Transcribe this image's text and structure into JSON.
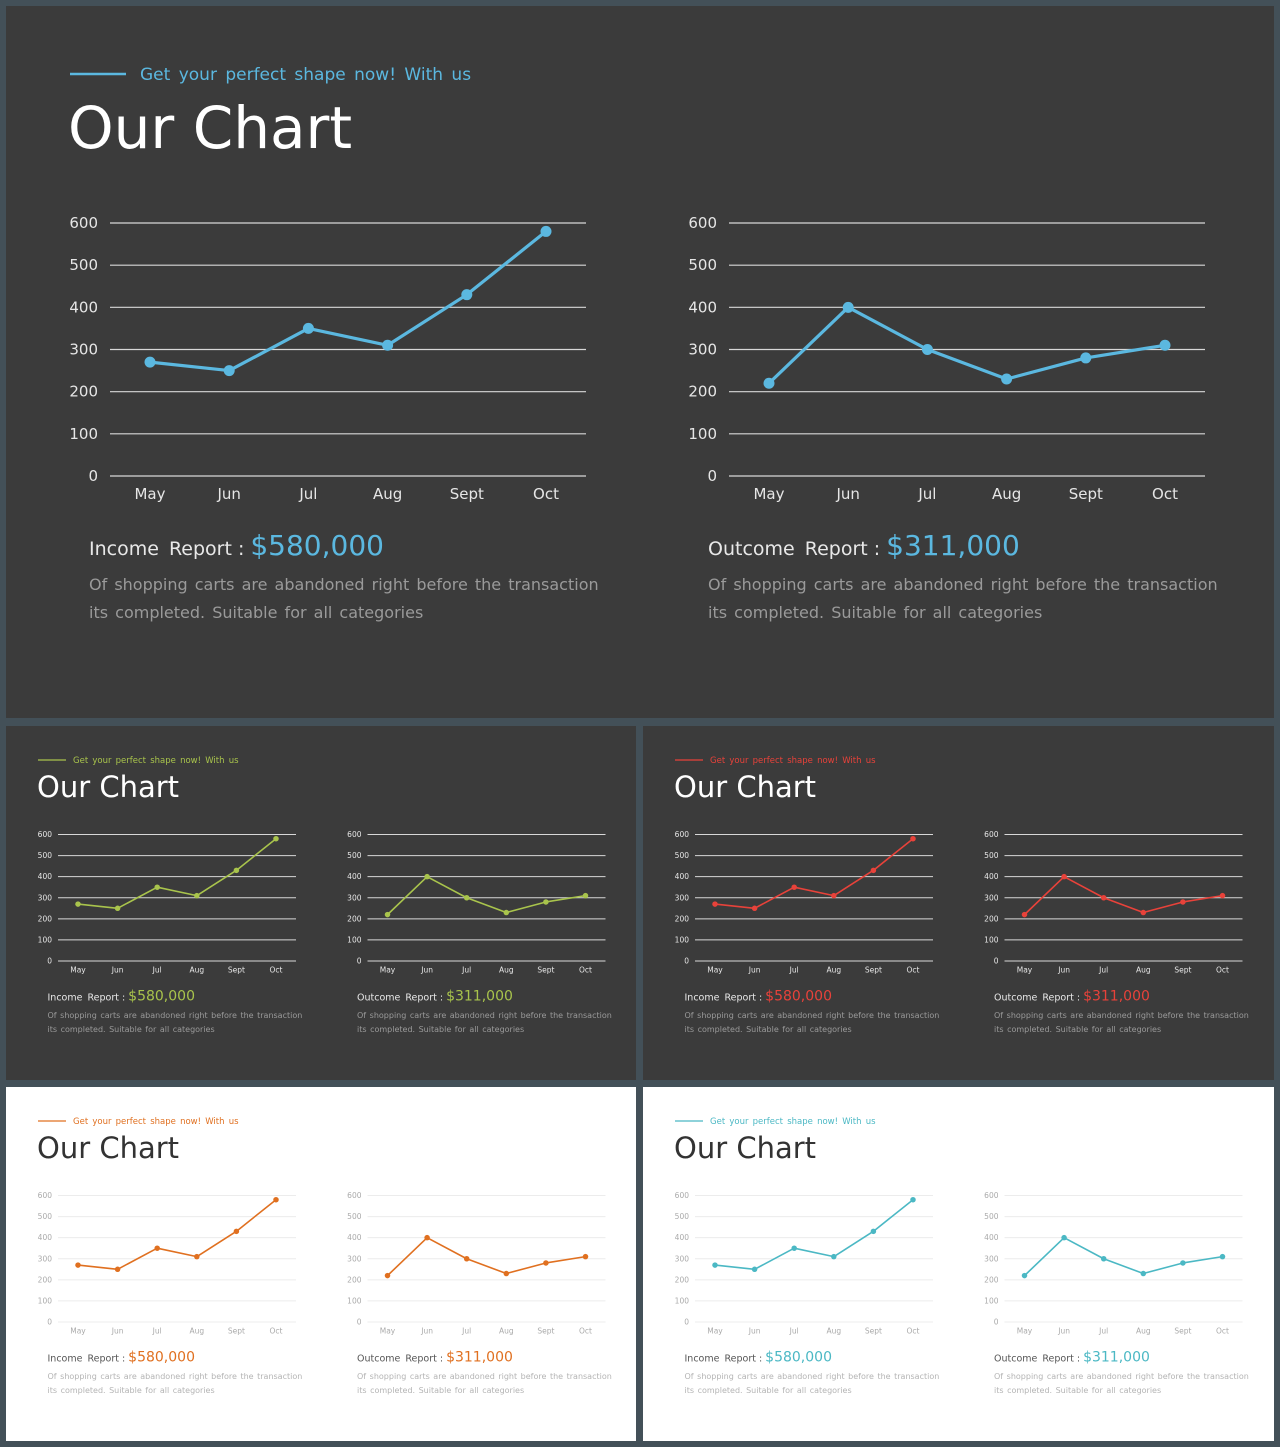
{
  "slides": [
    {
      "theme": "dark",
      "accent": "#5bb8e0",
      "tagline": "Get your perfect shape now! With us",
      "title": "Our Chart",
      "charts": [
        {
          "label": "Income Report",
          "amount": "$580,000",
          "description_line1": "Of shopping carts are abandoned right before the transaction",
          "description_line2": "its completed. Suitable for all categories"
        },
        {
          "label": "Outcome Report",
          "amount": "$311,000",
          "description_line1": "Of shopping carts are abandoned right before the transaction",
          "description_line2": "its completed. Suitable for all categories"
        }
      ]
    },
    {
      "theme": "dark",
      "accent": "#a9c44c",
      "tagline": "Get your perfect shape now! With us",
      "title": "Our Chart",
      "charts": [
        {
          "label": "Income Report",
          "amount": "$580,000",
          "description_line1": "Of shopping carts are abandoned right before the transaction",
          "description_line2": "its completed. Suitable for all categories"
        },
        {
          "label": "Outcome Report",
          "amount": "$311,000",
          "description_line1": "Of shopping carts are abandoned right before the transaction",
          "description_line2": "its completed. Suitable for all categories"
        }
      ]
    },
    {
      "theme": "dark",
      "accent": "#e8423a",
      "tagline": "Get your perfect shape now! With us",
      "title": "Our Chart",
      "charts": [
        {
          "label": "Income Report",
          "amount": "$580,000",
          "description_line1": "Of shopping carts are abandoned right before the transaction",
          "description_line2": "its completed. Suitable for all categories"
        },
        {
          "label": "Outcome Report",
          "amount": "$311,000",
          "description_line1": "Of shopping carts are abandoned right before the transaction",
          "description_line2": "its completed. Suitable for all categories"
        }
      ]
    },
    {
      "theme": "light",
      "accent": "#e07020",
      "tagline": "Get your perfect shape now! With us",
      "title": "Our Chart",
      "charts": [
        {
          "label": "Income Report",
          "amount": "$580,000",
          "description_line1": "Of shopping carts are abandoned right before the transaction",
          "description_line2": "its completed. Suitable for all categories"
        },
        {
          "label": "Outcome Report",
          "amount": "$311,000",
          "description_line1": "Of shopping carts are abandoned right before the transaction",
          "description_line2": "its completed. Suitable for all categories"
        }
      ]
    },
    {
      "theme": "light",
      "accent": "#4bb8c4",
      "tagline": "Get your perfect shape now! With us",
      "title": "Our Chart",
      "charts": [
        {
          "label": "Income Report",
          "amount": "$580,000",
          "description_line1": "Of shopping carts are abandoned right before the transaction",
          "description_line2": "its completed. Suitable for all categories"
        },
        {
          "label": "Outcome Report",
          "amount": "$311,000",
          "description_line1": "Of shopping carts are abandoned right before the transaction",
          "description_line2": "its completed. Suitable for all categories"
        }
      ]
    }
  ],
  "chart_data": [
    {
      "type": "line",
      "categories": [
        "May",
        "Jun",
        "Jul",
        "Aug",
        "Sept",
        "Oct"
      ],
      "values": [
        270,
        250,
        350,
        310,
        430,
        580
      ],
      "title": "",
      "xlabel": "",
      "ylabel": "",
      "ylim": [
        0,
        600
      ],
      "yticks": [
        0,
        100,
        200,
        300,
        400,
        500,
        600
      ],
      "grid": true
    },
    {
      "type": "line",
      "categories": [
        "May",
        "Jun",
        "Jul",
        "Aug",
        "Sept",
        "Oct"
      ],
      "values": [
        220,
        400,
        300,
        230,
        280,
        310
      ],
      "title": "",
      "xlabel": "",
      "ylabel": "",
      "ylim": [
        0,
        600
      ],
      "yticks": [
        0,
        100,
        200,
        300,
        400,
        500,
        600
      ],
      "grid": true
    }
  ]
}
